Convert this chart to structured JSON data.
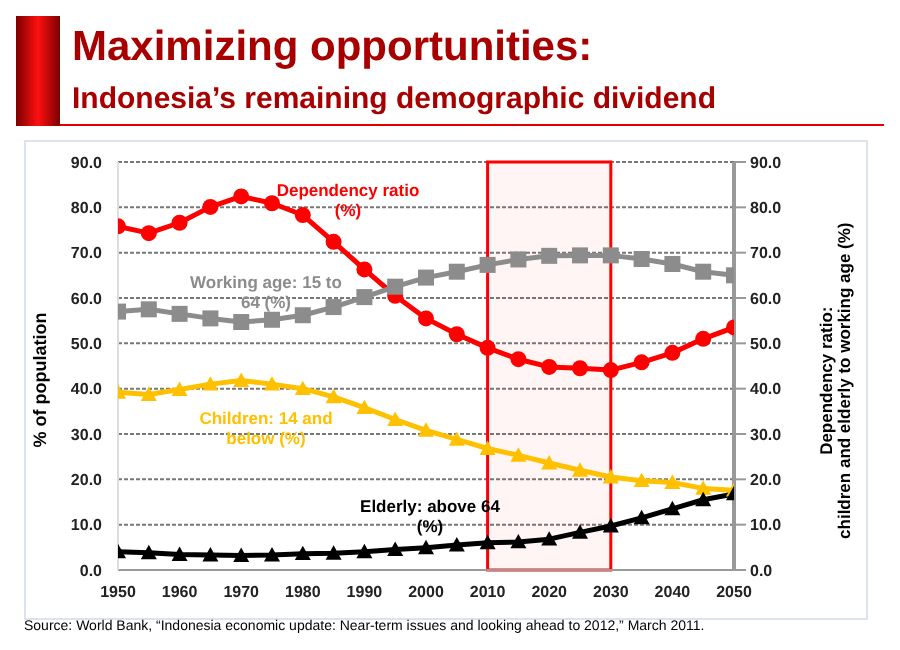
{
  "chart_data": {
    "type": "line",
    "title": "Maximizing opportunities:",
    "subtitle": "Indonesia’s remaining demographic dividend",
    "ylabel": "% of population",
    "y2label": "Dependency ratio:\nchildren and elderly to working age (%)",
    "x": [
      1950,
      1955,
      1960,
      1965,
      1970,
      1975,
      1980,
      1985,
      1990,
      1995,
      2000,
      2005,
      2010,
      2015,
      2020,
      2025,
      2030,
      2035,
      2040,
      2045,
      2050
    ],
    "xlim": [
      1950,
      2050
    ],
    "xticks": [
      1950,
      1960,
      1970,
      1980,
      1990,
      2000,
      2010,
      2020,
      2030,
      2040,
      2050
    ],
    "ylim": [
      0,
      90
    ],
    "yticks": [
      {
        "value": 0,
        "label": "0.0"
      },
      {
        "value": 10,
        "label": "10.0"
      },
      {
        "value": 20,
        "label": "20.0"
      },
      {
        "value": 30,
        "label": "30.0"
      },
      {
        "value": 40,
        "label": "40.0"
      },
      {
        "value": 50,
        "label": "50.0"
      },
      {
        "value": 60,
        "label": "60.0"
      },
      {
        "value": 70,
        "label": "70.0"
      },
      {
        "value": 80,
        "label": "80.0"
      },
      {
        "value": 90,
        "label": "90.0"
      }
    ],
    "y2lim": [
      0,
      90
    ],
    "y2ticks": [
      {
        "value": 0,
        "label": "0.0"
      },
      {
        "value": 10,
        "label": "10.0"
      },
      {
        "value": 20,
        "label": "20.0"
      },
      {
        "value": 30,
        "label": "30.0"
      },
      {
        "value": 40,
        "label": "40.0"
      },
      {
        "value": 50,
        "label": "50.0"
      },
      {
        "value": 60,
        "label": "60.0"
      },
      {
        "value": 70,
        "label": "70.0"
      },
      {
        "value": 80,
        "label": "80.0"
      },
      {
        "value": 90,
        "label": "90.0"
      }
    ],
    "grid": "y",
    "legend": false,
    "series": [
      {
        "name": "Dependency ratio (%)",
        "color": "#ff0000",
        "axis": "y2",
        "marker": "circle",
        "values": [
          75.8,
          74.3,
          76.6,
          80.1,
          82.4,
          80.9,
          78.3,
          72.4,
          66.3,
          60.5,
          55.5,
          52.0,
          49.0,
          46.5,
          44.8,
          44.5,
          44.1,
          45.8,
          47.9,
          51.0,
          53.5
        ]
      },
      {
        "name": "Working age: 15 to 64 (%)",
        "color": "#8c8c8c",
        "marker": "square",
        "values": [
          57.0,
          57.5,
          56.5,
          55.5,
          54.7,
          55.2,
          56.2,
          58.0,
          60.2,
          62.5,
          64.5,
          65.8,
          67.3,
          68.5,
          69.3,
          69.4,
          69.4,
          68.6,
          67.5,
          65.8,
          65.0
        ]
      },
      {
        "name": "Children: 14 and below (%)",
        "color": "#ffc000",
        "marker": "triangle",
        "values": [
          39.2,
          38.7,
          39.8,
          41.0,
          41.8,
          41.0,
          40.0,
          38.2,
          35.8,
          33.2,
          30.8,
          28.8,
          26.8,
          25.3,
          23.6,
          22.0,
          20.5,
          19.7,
          19.3,
          18.0,
          17.6
        ]
      },
      {
        "name": "Elderly: above 64 (%)",
        "color": "#000000",
        "marker": "triangle",
        "values": [
          4.0,
          3.8,
          3.4,
          3.3,
          3.2,
          3.3,
          3.6,
          3.7,
          4.0,
          4.5,
          4.9,
          5.5,
          6.0,
          6.2,
          6.8,
          8.3,
          9.7,
          11.5,
          13.5,
          15.5,
          16.8
        ]
      }
    ],
    "bands": [
      {
        "axis": "x",
        "from": 2010,
        "to": 2030,
        "color": "#ff0000"
      }
    ],
    "annotations": [
      "Source: World Bank, “Indonesia economic update: Near-term issues and looking ahead to 2012,” March 2011."
    ]
  }
}
